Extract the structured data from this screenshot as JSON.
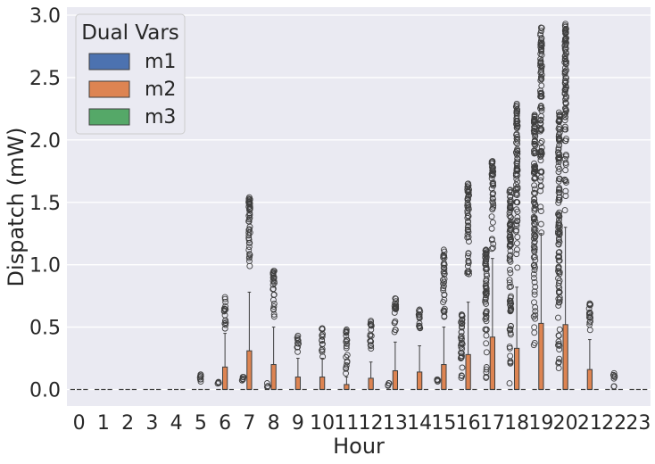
{
  "chart_data": {
    "type": "box",
    "title": "",
    "xlabel": "Hour",
    "ylabel": "Dispatch (mW)",
    "ylim": [
      -0.14,
      3.05
    ],
    "yticks": [
      0.0,
      0.5,
      1.0,
      1.5,
      2.0,
      2.5,
      3.0
    ],
    "ytick_labels": [
      "0.0",
      "0.5",
      "1.0",
      "1.5",
      "2.0",
      "2.5",
      "3.0"
    ],
    "categories": [
      "0",
      "1",
      "2",
      "3",
      "4",
      "5",
      "6",
      "7",
      "8",
      "9",
      "10",
      "11",
      "12",
      "13",
      "14",
      "15",
      "16",
      "17",
      "18",
      "19",
      "20",
      "21",
      "22",
      "23"
    ],
    "grid": true,
    "legend": {
      "title": "Dual Vars",
      "position": "top-left",
      "entries": [
        {
          "name": "m1",
          "color": "#4c72b0"
        },
        {
          "name": "m2",
          "color": "#dd8452"
        },
        {
          "name": "m3",
          "color": "#55a868"
        }
      ]
    },
    "series": [
      {
        "name": "m1",
        "color": "#4c72b0",
        "q3": [
          0,
          0,
          0,
          0,
          0,
          0,
          0,
          0,
          0,
          0,
          0,
          0,
          0,
          0,
          0,
          0,
          0,
          0,
          0,
          0,
          0,
          0,
          0,
          0
        ],
        "whisker_high": [
          0,
          0,
          0,
          0,
          0,
          0,
          0,
          0,
          0,
          0,
          0,
          0,
          0,
          0,
          0,
          0,
          0,
          0,
          0,
          0,
          0,
          0,
          0,
          0
        ],
        "outlier_max": [
          0,
          0,
          0,
          0,
          0,
          0,
          0.06,
          0.1,
          0.05,
          0,
          0,
          0,
          0,
          0.05,
          0,
          0.08,
          0.6,
          1.12,
          1.6,
          2.2,
          2.22,
          0,
          0,
          0
        ]
      },
      {
        "name": "m2",
        "color": "#dd8452",
        "q3": [
          0,
          0,
          0,
          0,
          0,
          0,
          0.18,
          0.31,
          0.2,
          0.1,
          0.1,
          0.04,
          0.09,
          0.15,
          0.14,
          0.2,
          0.28,
          0.42,
          0.33,
          0.53,
          0.52,
          0.16,
          0,
          0
        ],
        "whisker_high": [
          0,
          0,
          0,
          0,
          0,
          0,
          0.45,
          0.78,
          0.5,
          0.25,
          0.25,
          0.1,
          0.22,
          0.38,
          0.35,
          0.5,
          0.7,
          1.05,
          0.82,
          1.25,
          1.3,
          0.4,
          0,
          0
        ],
        "outlier_max": [
          0,
          0,
          0,
          0,
          0,
          0.12,
          0.74,
          1.54,
          0.95,
          0.43,
          0.49,
          0.48,
          0.55,
          0.73,
          0.64,
          1.12,
          1.65,
          1.83,
          2.29,
          2.9,
          2.93,
          0.69,
          0.13,
          0
        ]
      },
      {
        "name": "m3",
        "color": "#55a868",
        "q3": [
          0,
          0,
          0,
          0,
          0,
          0,
          0,
          0,
          0,
          0,
          0,
          0,
          0,
          0,
          0,
          0,
          0,
          0,
          0,
          0,
          0,
          0,
          0,
          0
        ],
        "whisker_high": [
          0,
          0,
          0,
          0,
          0,
          0,
          0,
          0,
          0,
          0,
          0,
          0,
          0,
          0,
          0,
          0,
          0,
          0,
          0,
          0,
          0,
          0,
          0,
          0
        ],
        "outlier_max": [
          0,
          0,
          0,
          0,
          0,
          0,
          0,
          0,
          0,
          0,
          0,
          0,
          0,
          0,
          0,
          0,
          0,
          0,
          0,
          0,
          0,
          0,
          0,
          0
        ]
      }
    ]
  }
}
